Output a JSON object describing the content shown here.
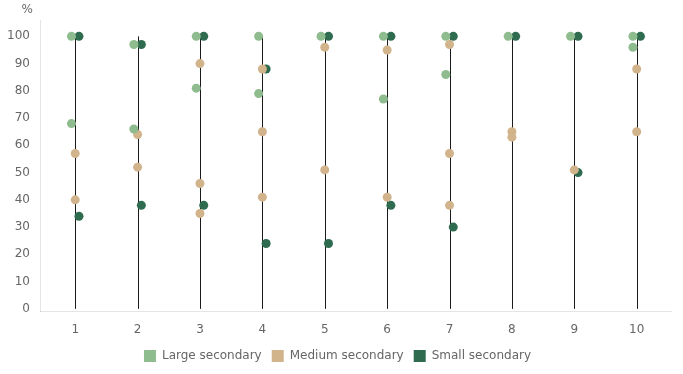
{
  "chart_data": {
    "type": "dot",
    "x": [
      1,
      2,
      3,
      4,
      5,
      6,
      7,
      8,
      9,
      10
    ],
    "xlim": [
      0.45,
      10.55
    ],
    "xticks": [
      1,
      2,
      3,
      4,
      5,
      6,
      7,
      8,
      9,
      10
    ],
    "ylim": [
      -1,
      106
    ],
    "yticks": [
      0,
      10,
      20,
      30,
      40,
      50,
      60,
      70,
      80,
      90,
      100
    ],
    "y_label": "%",
    "grid": false,
    "legend": "bottom",
    "marker": "circle",
    "series": [
      {
        "name": "Large secondary",
        "color": "#8fbc8f",
        "values": [
          [
            100,
            68
          ],
          [
            97,
            66
          ],
          [
            100,
            81
          ],
          [
            100,
            79
          ],
          [
            100
          ],
          [
            100,
            77
          ],
          [
            100,
            86
          ],
          [
            100
          ],
          [
            100
          ],
          [
            100,
            96
          ]
        ]
      },
      {
        "name": "Medium secondary",
        "color": "#d2b48c",
        "values": [
          [
            57,
            40
          ],
          [
            64,
            52
          ],
          [
            90,
            46,
            35
          ],
          [
            88,
            65,
            41
          ],
          [
            96,
            51
          ],
          [
            95,
            41
          ],
          [
            97,
            57,
            38
          ],
          [
            65,
            63
          ],
          [
            51
          ],
          [
            88,
            65
          ]
        ]
      },
      {
        "name": "Small secondary",
        "color": "#2e6b4f",
        "values": [
          [
            100,
            34
          ],
          [
            97,
            38
          ],
          [
            100,
            38
          ],
          [
            88,
            24
          ],
          [
            100,
            24
          ],
          [
            100,
            38
          ],
          [
            100,
            30
          ],
          [
            100
          ],
          [
            100,
            50
          ],
          [
            100
          ]
        ]
      }
    ]
  }
}
